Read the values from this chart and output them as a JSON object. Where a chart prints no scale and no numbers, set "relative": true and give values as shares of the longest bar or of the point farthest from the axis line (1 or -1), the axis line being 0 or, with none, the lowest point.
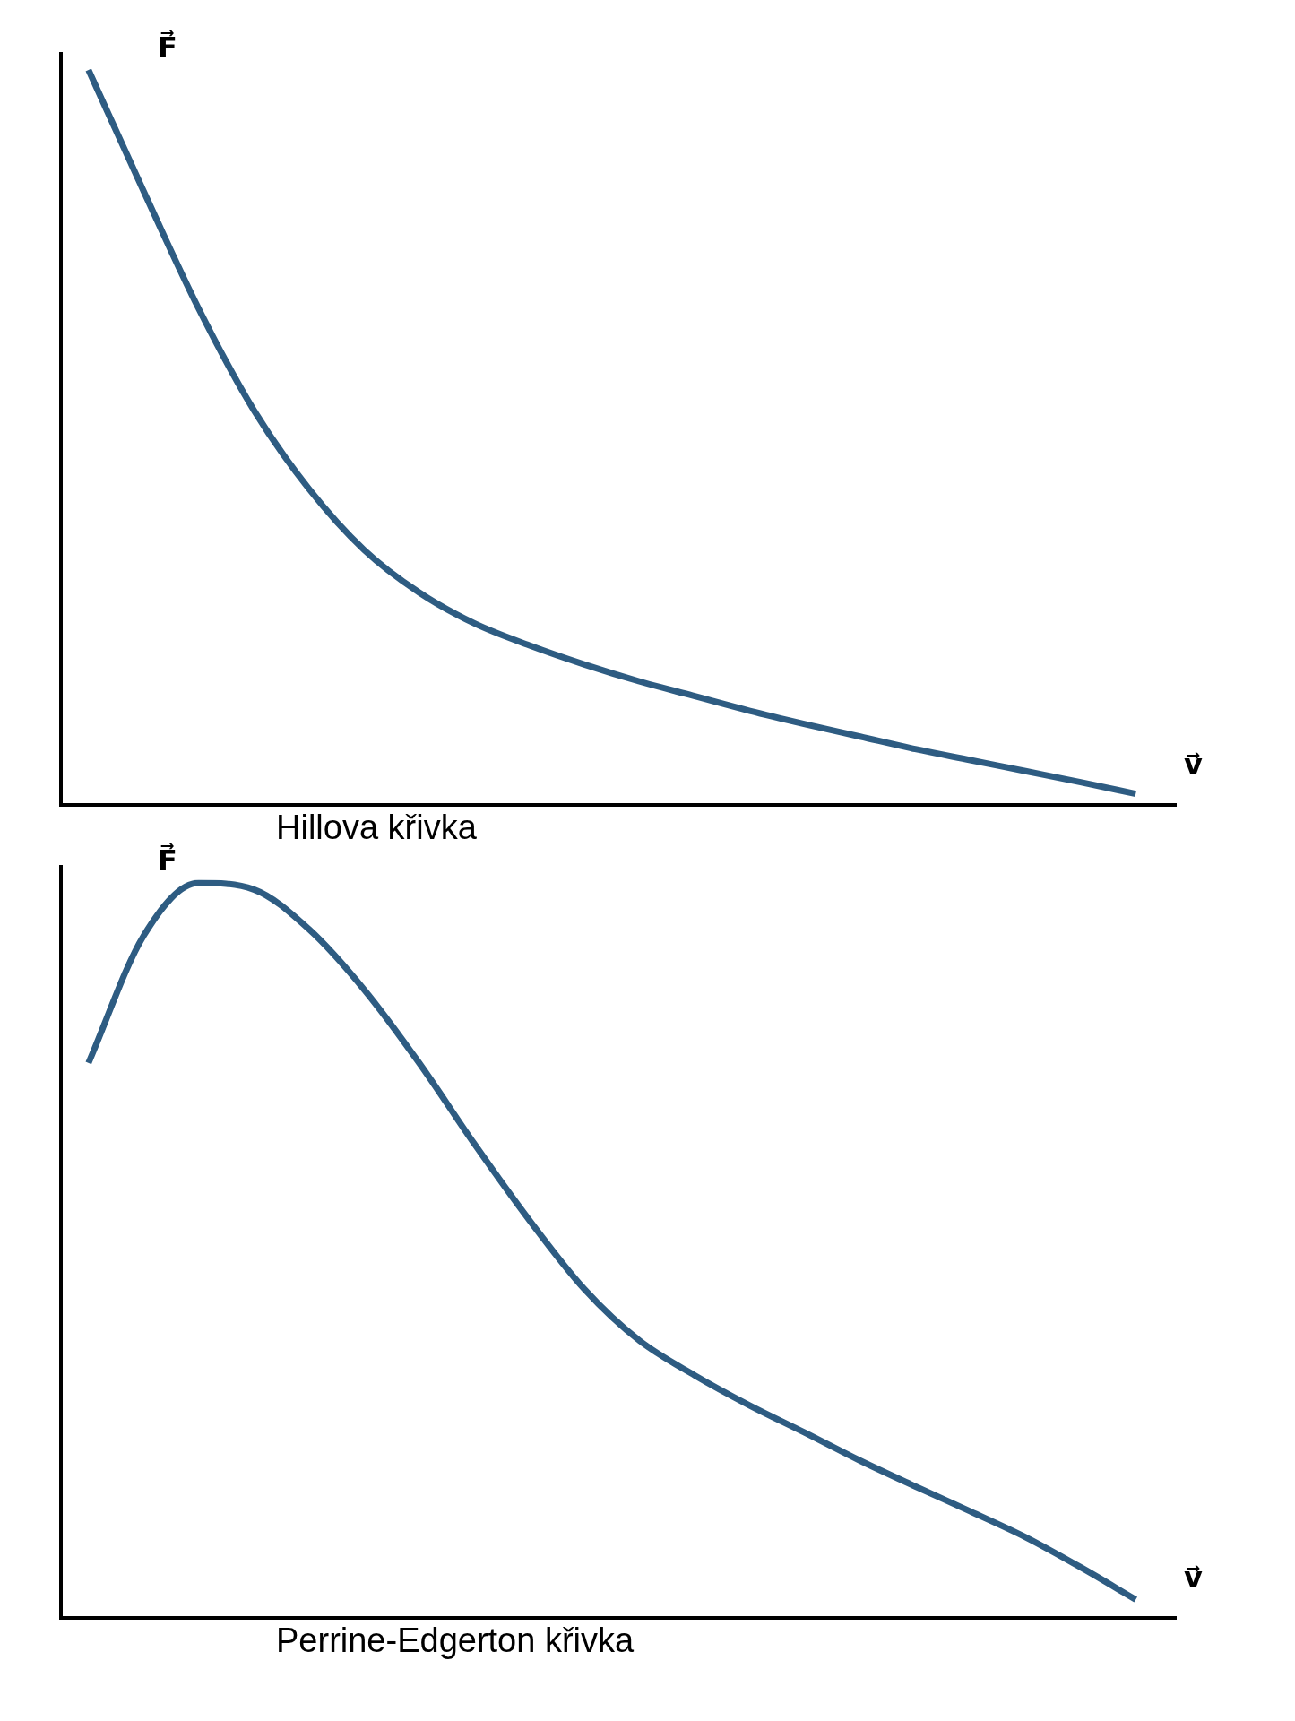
{
  "chart_data": [
    {
      "type": "line",
      "title": "Hillova křivka",
      "xlabel": "v⃗",
      "ylabel": "F⃗",
      "relative": true,
      "grid": false,
      "legend": false,
      "marker": "none",
      "line_style": "solid",
      "categories": [
        null,
        null,
        null,
        null,
        null,
        null,
        null,
        null,
        null,
        null,
        null,
        null,
        null,
        null,
        null,
        null,
        null,
        null,
        null,
        null
      ],
      "series": [
        {
          "color": "#2e5c82",
          "values": [
            1.0,
            0.835,
            0.675,
            0.537,
            0.43,
            0.347,
            0.289,
            0.247,
            0.217,
            0.191,
            0.168,
            0.148,
            0.128,
            0.11,
            0.093,
            0.076,
            0.061,
            0.046,
            0.031,
            0.015
          ]
        }
      ]
    },
    {
      "type": "line",
      "title": "Perrine-Edgerton křivka",
      "xlabel": "v⃗",
      "ylabel": "F⃗",
      "relative": true,
      "grid": false,
      "legend": false,
      "marker": "none",
      "line_style": "solid",
      "categories": [
        null,
        null,
        null,
        null,
        null,
        null,
        null,
        null,
        null,
        null,
        null,
        null,
        null,
        null,
        null,
        null,
        null,
        null,
        null,
        null
      ],
      "series": [
        {
          "color": "#2e5c82",
          "values": [
            0.755,
            0.928,
            1.0,
            0.991,
            0.937,
            0.855,
            0.755,
            0.645,
            0.541,
            0.447,
            0.377,
            0.33,
            0.289,
            0.252,
            0.214,
            0.179,
            0.145,
            0.11,
            0.069,
            0.025
          ]
        }
      ]
    }
  ]
}
